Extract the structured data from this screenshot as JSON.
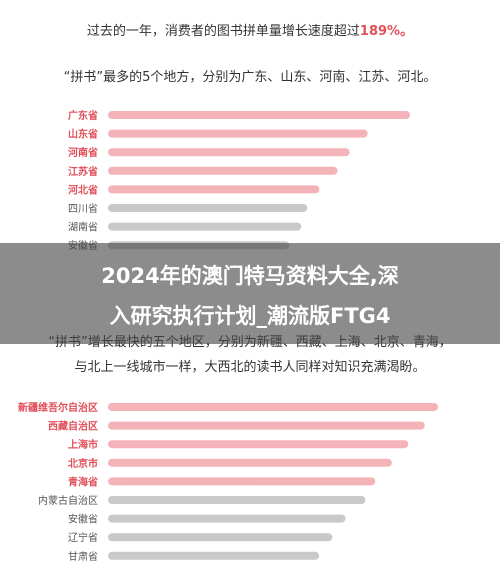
{
  "header": {
    "line1_prefix": "过去的一年，消费者的图书拼单量增长速度超过",
    "line1_highlight": "189%。",
    "line2": "“拼书”最多的5个地方，分别为广东、山东、河南、江苏、河北。",
    "line3": "“拼书”增长最快的五个地区，分别为新疆、西藏、上海、北京、青海，",
    "line4": "与北上一线城市一样，大西北的读书人同样对知识充满渴盼。"
  },
  "banner": {
    "title_line1": "2024年的澳门特马资料大全,深",
    "title_line2": "入研究执行计划_潮流版FTG4"
  },
  "colors": {
    "highlight": "#e0505a",
    "bar_red": "#f4b3b8",
    "bar_gray": "#c9c9c9",
    "label_red": "#e0505a",
    "label_gray": "#555555"
  },
  "chart_data": [
    {
      "type": "bar",
      "orientation": "horizontal",
      "categories": [
        "广东省",
        "山东省",
        "河南省",
        "江苏省",
        "河北省",
        "四川省",
        "湖南省",
        "安徽省"
      ],
      "values": [
        100,
        86,
        80,
        76,
        70,
        66,
        64,
        60
      ],
      "highlighted": [
        true,
        true,
        true,
        true,
        true,
        false,
        false,
        false
      ],
      "grid": false,
      "axes_visible": false
    },
    {
      "type": "bar",
      "orientation": "horizontal",
      "categories": [
        "新疆维吾尔自治区",
        "西藏自治区",
        "上海市",
        "北京市",
        "青海省",
        "内蒙古自治区",
        "安徽省",
        "辽宁省",
        "甘肃省"
      ],
      "values": [
        100,
        96,
        91,
        86,
        81,
        78,
        72,
        68,
        64
      ],
      "highlighted": [
        true,
        true,
        true,
        true,
        true,
        false,
        false,
        false,
        false
      ],
      "grid": false,
      "axes_visible": false
    }
  ]
}
